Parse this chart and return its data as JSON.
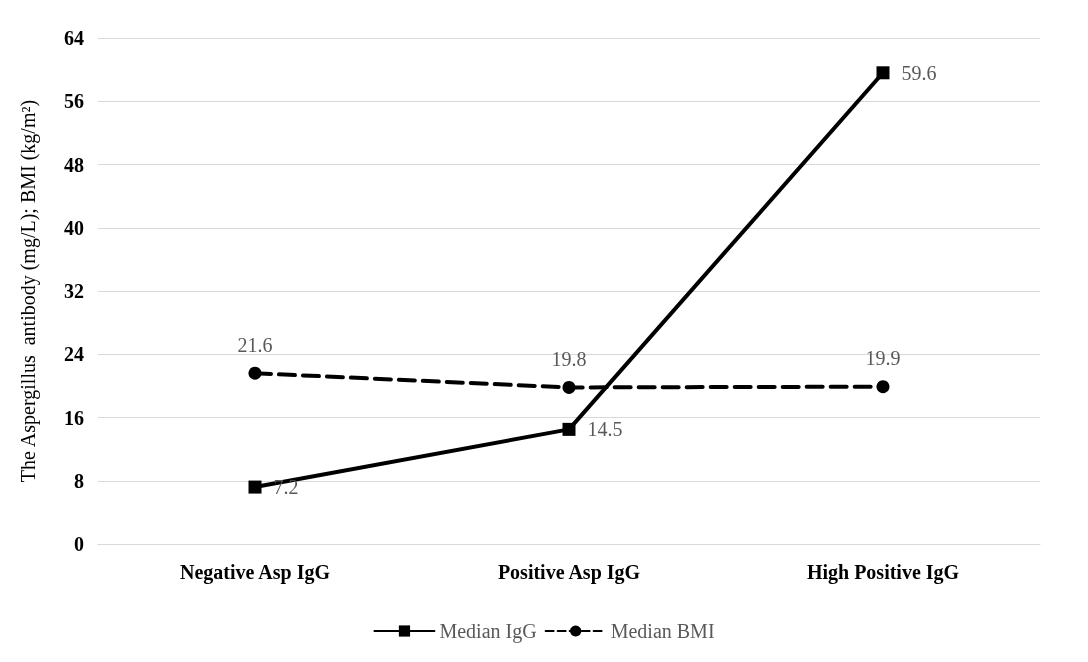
{
  "chart_data": {
    "type": "line",
    "ylabel": "The Aspergillus  antibody (mg/L); BMI (kg/m²)",
    "categories": [
      "Negative Asp IgG",
      "Positive Asp IgG",
      "High Positive IgG"
    ],
    "series": [
      {
        "name": "Median IgG",
        "color": "#000000",
        "values": [
          7.2,
          14.5,
          59.6
        ],
        "marker": "square",
        "line_style": "solid"
      },
      {
        "name": "Median BMI",
        "color": "#000000",
        "values": [
          21.6,
          19.8,
          19.9
        ],
        "marker": "circle",
        "line_style": "dashed"
      }
    ],
    "ylim": [
      0,
      64
    ],
    "yticks": [
      0,
      8,
      16,
      24,
      32,
      40,
      48,
      56,
      64
    ],
    "grid": "y",
    "legend": "bottom",
    "data_labels": true
  }
}
